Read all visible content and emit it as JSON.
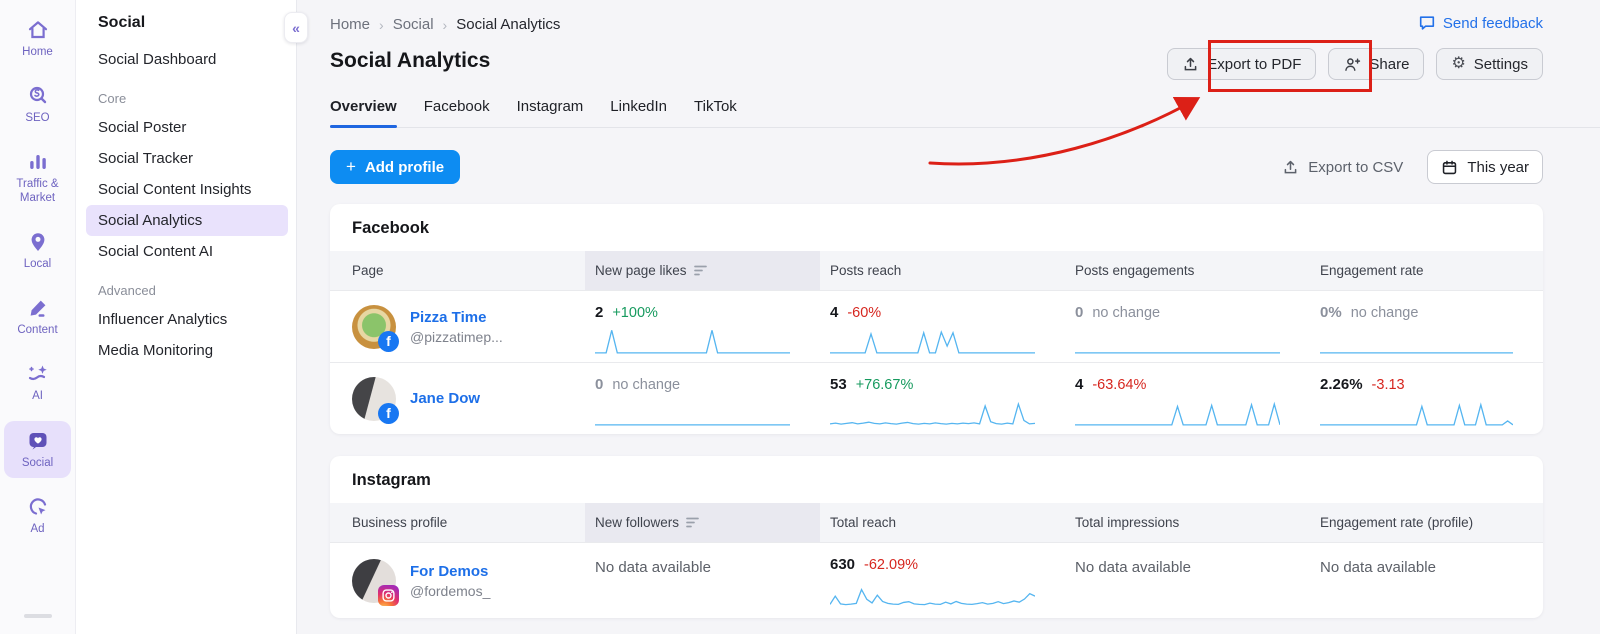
{
  "rail": {
    "items": [
      {
        "label": "Home"
      },
      {
        "label": "SEO"
      },
      {
        "label": "Traffic & Market"
      },
      {
        "label": "Local"
      },
      {
        "label": "Content"
      },
      {
        "label": "AI"
      },
      {
        "label": "Social"
      },
      {
        "label": "Ad"
      }
    ]
  },
  "sidebar": {
    "title": "Social",
    "dashboard": "Social Dashboard",
    "collapse_icon": "«",
    "sections": [
      {
        "label": "Core",
        "items": [
          "Social Poster",
          "Social Tracker",
          "Social Content Insights",
          "Social Analytics",
          "Social Content AI"
        ],
        "active_item": "Social Analytics"
      },
      {
        "label": "Advanced",
        "items": [
          "Influencer Analytics",
          "Media Monitoring"
        ]
      }
    ]
  },
  "breadcrumb": {
    "items": [
      "Home",
      "Social",
      "Social Analytics"
    ]
  },
  "header": {
    "title": "Social Analytics",
    "send_feedback": "Send feedback",
    "export_pdf": "Export to PDF",
    "share": "Share",
    "settings": "Settings",
    "settings_gear": "⚙"
  },
  "tabs": {
    "items": [
      "Overview",
      "Facebook",
      "Instagram",
      "LinkedIn",
      "TikTok"
    ],
    "active": "Overview"
  },
  "toolbar": {
    "add_profile": "Add profile",
    "plus": "+",
    "export_csv": "Export to CSV",
    "date_range": "This year"
  },
  "facebook": {
    "title": "Facebook",
    "columns": [
      "Page",
      "New page likes",
      "Posts reach",
      "Posts engagements",
      "Engagement rate"
    ],
    "sorted_column": "New page likes",
    "rows": [
      {
        "name": "Pizza Time",
        "handle": "@pizzatimep...",
        "network": "facebook",
        "cells": [
          {
            "value": "2",
            "delta": "+100%",
            "trend": "up",
            "spark": [
              2,
              2,
              2,
              95,
              2,
              2,
              2,
              2,
              2,
              2,
              2,
              2,
              2,
              2,
              2,
              2,
              2,
              2,
              2,
              2,
              2,
              95,
              2,
              2,
              2,
              2,
              2,
              2,
              2,
              2,
              2,
              2,
              2,
              2,
              2,
              2
            ]
          },
          {
            "value": "4",
            "delta": "-60%",
            "trend": "down",
            "spark": [
              2,
              2,
              2,
              2,
              2,
              2,
              2,
              80,
              2,
              2,
              2,
              2,
              2,
              2,
              2,
              2,
              85,
              2,
              2,
              88,
              30,
              85,
              2,
              2,
              2,
              2,
              2,
              2,
              2,
              2,
              2,
              2,
              2,
              2,
              2,
              2
            ]
          },
          {
            "value": "0",
            "delta": "no change",
            "trend": "neutral",
            "spark": [
              2,
              2
            ]
          },
          {
            "value": "0%",
            "delta": "no change",
            "trend": "neutral",
            "spark": [
              2,
              2
            ]
          }
        ]
      },
      {
        "name": "Jane Dow",
        "handle": "",
        "network": "facebook",
        "cells": [
          {
            "value": "0",
            "delta": "no change",
            "trend": "neutral",
            "spark": [
              2,
              2
            ]
          },
          {
            "value": "53",
            "delta": "+76.67%",
            "trend": "up",
            "spark": [
              6,
              9,
              5,
              8,
              11,
              6,
              9,
              13,
              8,
              6,
              10,
              7,
              5,
              9,
              12,
              7,
              5,
              8,
              6,
              10,
              7,
              5,
              8,
              6,
              9,
              7,
              10,
              6,
              80,
              15,
              7,
              5,
              9,
              6,
              88,
              20,
              6,
              8
            ]
          },
          {
            "value": "4",
            "delta": "-63.64%",
            "trend": "down",
            "spark": [
              2,
              2,
              2,
              2,
              2,
              2,
              2,
              2,
              2,
              2,
              2,
              2,
              2,
              2,
              2,
              2,
              2,
              2,
              78,
              2,
              2,
              2,
              2,
              2,
              82,
              2,
              2,
              2,
              2,
              2,
              2,
              85,
              2,
              2,
              2,
              88,
              2
            ]
          },
          {
            "value": "2.26%",
            "delta": "-3.13",
            "trend": "down",
            "spark": [
              2,
              2,
              2,
              2,
              2,
              2,
              2,
              2,
              2,
              2,
              2,
              2,
              2,
              2,
              2,
              2,
              2,
              2,
              2,
              78,
              2,
              2,
              2,
              2,
              2,
              2,
              82,
              2,
              2,
              2,
              85,
              2,
              2,
              2,
              2,
              18,
              2
            ]
          }
        ]
      }
    ]
  },
  "instagram": {
    "title": "Instagram",
    "columns": [
      "Business profile",
      "New followers",
      "Total reach",
      "Total impressions",
      "Engagement rate (profile)"
    ],
    "sorted_column": "New followers",
    "rows": [
      {
        "name": "For Demos",
        "handle": "@fordemos_",
        "network": "instagram",
        "cells": [
          {
            "value": "No data available",
            "trend": "nodata"
          },
          {
            "value": "630",
            "delta": "-62.09%",
            "trend": "down",
            "spark": [
              4,
              38,
              6,
              3,
              5,
              8,
              65,
              25,
              10,
              42,
              16,
              8,
              5,
              4,
              12,
              15,
              6,
              4,
              3,
              9,
              5,
              4,
              13,
              6,
              16,
              8,
              5,
              4,
              7,
              11,
              5,
              8,
              15,
              7,
              11,
              18,
              13,
              26,
              48,
              38
            ]
          },
          {
            "value": "No data available",
            "trend": "nodata"
          },
          {
            "value": "No data available",
            "trend": "nodata"
          }
        ]
      }
    ]
  },
  "colors": {
    "accent_purple": "#7b6ed0",
    "active_purple_bg": "#e9e2fc",
    "link_blue": "#2371e9",
    "button_blue": "#0d8cf2",
    "tab_underline": "#1f66e0",
    "positive": "#169a5e",
    "negative": "#d6261f",
    "muted": "#8b909c",
    "spark": "#55b5f0",
    "annotation_red": "#dc2017",
    "facebook_badge": "#1877f2"
  }
}
